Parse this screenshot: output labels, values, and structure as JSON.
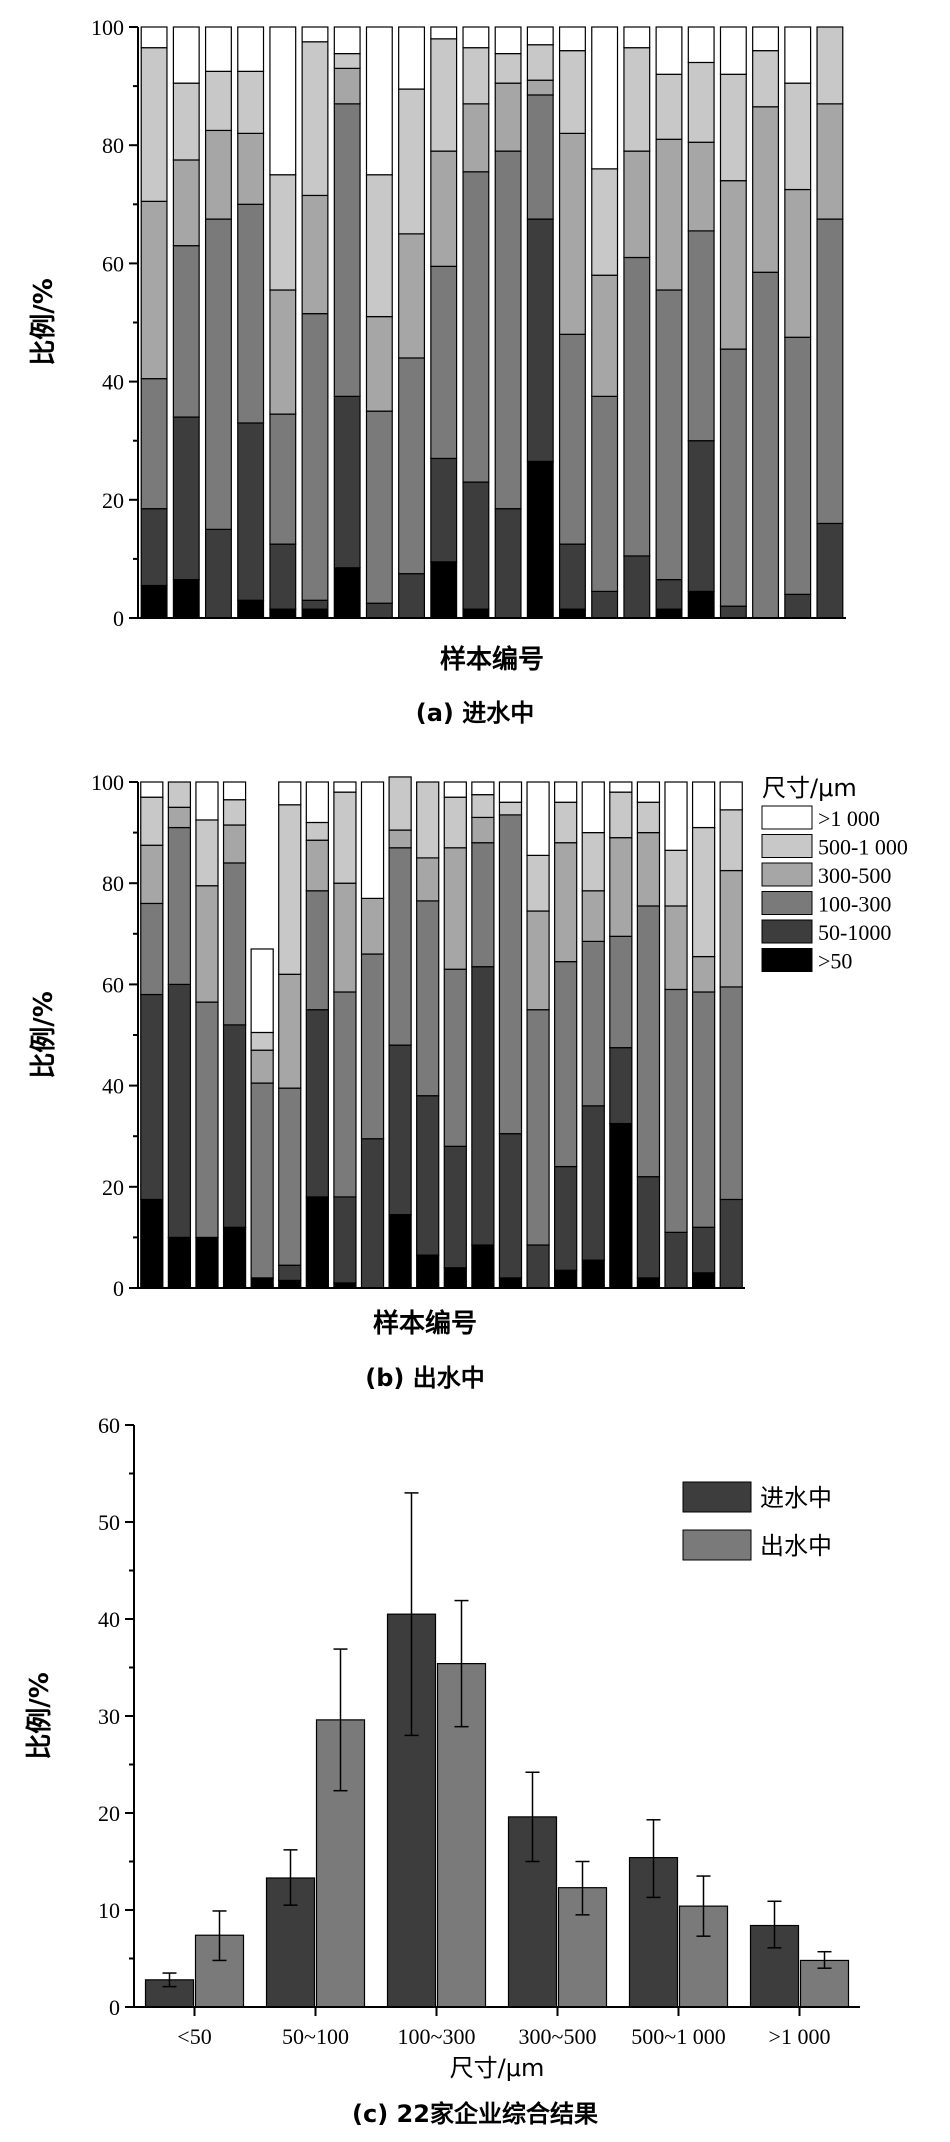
{
  "chart_data": [
    {
      "type": "bar",
      "stacked": true,
      "caption": "(a) 进水中",
      "xlabel": "样本编号",
      "ylabel": "比例/%",
      "ylim": [
        0,
        100
      ],
      "yticks": [
        "0",
        "20",
        "40",
        "60",
        "80",
        "100"
      ],
      "legend_placement": "none",
      "series_colors": [
        "#000000",
        "#3d3d3d",
        "#7a7a7a",
        "#a6a6a6",
        "#c8c8c8",
        "#ffffff"
      ],
      "stacks": [
        [
          5.5,
          13,
          22,
          30,
          26,
          3.5
        ],
        [
          6.5,
          27.5,
          29,
          14.5,
          13,
          9.5
        ],
        [
          0,
          15,
          52.5,
          15,
          10,
          7.5
        ],
        [
          3,
          30,
          37,
          12,
          10.5,
          7.5
        ],
        [
          1.5,
          11,
          22,
          21,
          19.5,
          25
        ],
        [
          1.5,
          1.5,
          48.5,
          20,
          26,
          2.5
        ],
        [
          8.5,
          29,
          49.5,
          6,
          2.5,
          4.5
        ],
        [
          0,
          2.5,
          32.5,
          16,
          24,
          25
        ],
        [
          0,
          7.5,
          36.5,
          21,
          24.5,
          10.5
        ],
        [
          9.5,
          17.5,
          32.5,
          19.5,
          19,
          2
        ],
        [
          1.5,
          21.5,
          52.5,
          11.5,
          9.5,
          3.5
        ],
        [
          0,
          18.5,
          60.5,
          11.5,
          5,
          4.5
        ],
        [
          26.5,
          41,
          21,
          2.5,
          6,
          3
        ],
        [
          1.5,
          11,
          35.5,
          34,
          14,
          4
        ],
        [
          0,
          4.5,
          33,
          20.5,
          18,
          24
        ],
        [
          0,
          10.5,
          50.5,
          18,
          17.5,
          3.5
        ],
        [
          1.5,
          5,
          49,
          25.5,
          11,
          8
        ],
        [
          4.5,
          25.5,
          35.5,
          15,
          13.5,
          6
        ],
        [
          0,
          2,
          43.5,
          28.5,
          18,
          8
        ],
        [
          0,
          0,
          58.5,
          28,
          9.5,
          4
        ],
        [
          0,
          4,
          43.5,
          25,
          18,
          9.5
        ],
        [
          0,
          16,
          51.5,
          19.5,
          13,
          0
        ]
      ]
    },
    {
      "type": "bar",
      "stacked": true,
      "caption": "(b) 出水中",
      "xlabel": "样本编号",
      "ylabel": "比例/%",
      "ylim": [
        0,
        100
      ],
      "yticks": [
        "0",
        "20",
        "40",
        "60",
        "80",
        "100"
      ],
      "legend_placement": "right",
      "legend_title": "尺寸/μm",
      "legend": [
        ">1 000",
        "500-1 000",
        "300-500",
        "100-300",
        "50-1000",
        ">50"
      ],
      "series_colors": [
        "#000000",
        "#3d3d3d",
        "#7a7a7a",
        "#a6a6a6",
        "#c8c8c8",
        "#ffffff"
      ],
      "stacks": [
        [
          17.5,
          40.5,
          18,
          11.5,
          9.5,
          3
        ],
        [
          10,
          50,
          31,
          4,
          5,
          0
        ],
        [
          10,
          0,
          46.5,
          23,
          13,
          7.5
        ],
        [
          12,
          40,
          32,
          7.5,
          5,
          3.5
        ],
        [
          2,
          0,
          38.5,
          6.5,
          3.5,
          16.5
        ],
        [
          1.5,
          3,
          35,
          22.5,
          33.5,
          4.5
        ],
        [
          18,
          37,
          23.5,
          10,
          3.5,
          8
        ],
        [
          1,
          17,
          40.5,
          21.5,
          18,
          2
        ],
        [
          0,
          29.5,
          36.5,
          11,
          0,
          23
        ],
        [
          14.5,
          33.5,
          39,
          3.5,
          10.5,
          0
        ],
        [
          6.5,
          31.5,
          38.5,
          8.5,
          15,
          0
        ],
        [
          4,
          24,
          35,
          24,
          10,
          3
        ],
        [
          8.5,
          55,
          24.5,
          5,
          4.5,
          2.5
        ],
        [
          2,
          28.5,
          63,
          0,
          2.5,
          4
        ],
        [
          0,
          8.5,
          46.5,
          19.5,
          11,
          14.5
        ],
        [
          3.5,
          20.5,
          40.5,
          23.5,
          8,
          4
        ],
        [
          5.5,
          30.5,
          32.5,
          10,
          11.5,
          10
        ],
        [
          32.5,
          15,
          22,
          19.5,
          9,
          2
        ],
        [
          2,
          20,
          53.5,
          14.5,
          6,
          4
        ],
        [
          0,
          11,
          48,
          16.5,
          11,
          13.5
        ],
        [
          3,
          9,
          46.5,
          7,
          25.5,
          9
        ],
        [
          0,
          17.5,
          42,
          23,
          12,
          5.5
        ]
      ]
    },
    {
      "type": "bar",
      "caption": "(c) 22家企业综合结果",
      "xlabel": "尺寸/μm",
      "ylabel": "比例/%",
      "ylim": [
        0,
        60
      ],
      "yticks": [
        "0",
        "10",
        "20",
        "30",
        "40",
        "50",
        "60"
      ],
      "legend_placement": "top-right",
      "categories": [
        "<50",
        "50~100",
        "100~300",
        "300~500",
        "500~1 000",
        ">1 000"
      ],
      "series": [
        {
          "name": "进水中",
          "color": "#3d3d3d",
          "values": [
            2.8,
            13.3,
            40.5,
            19.6,
            15.4,
            8.4
          ],
          "err_low": [
            2.1,
            10.5,
            28,
            15,
            11.3,
            6.1
          ],
          "err_high": [
            3.5,
            16.2,
            53,
            24.2,
            19.3,
            10.9
          ]
        },
        {
          "name": "出水中",
          "color": "#7a7a7a",
          "values": [
            7.4,
            29.6,
            35.4,
            12.3,
            10.4,
            4.8
          ],
          "err_low": [
            4.8,
            22.3,
            28.9,
            9.5,
            7.3,
            4
          ],
          "err_high": [
            9.9,
            36.9,
            41.9,
            15,
            13.5,
            5.7
          ]
        }
      ]
    }
  ]
}
